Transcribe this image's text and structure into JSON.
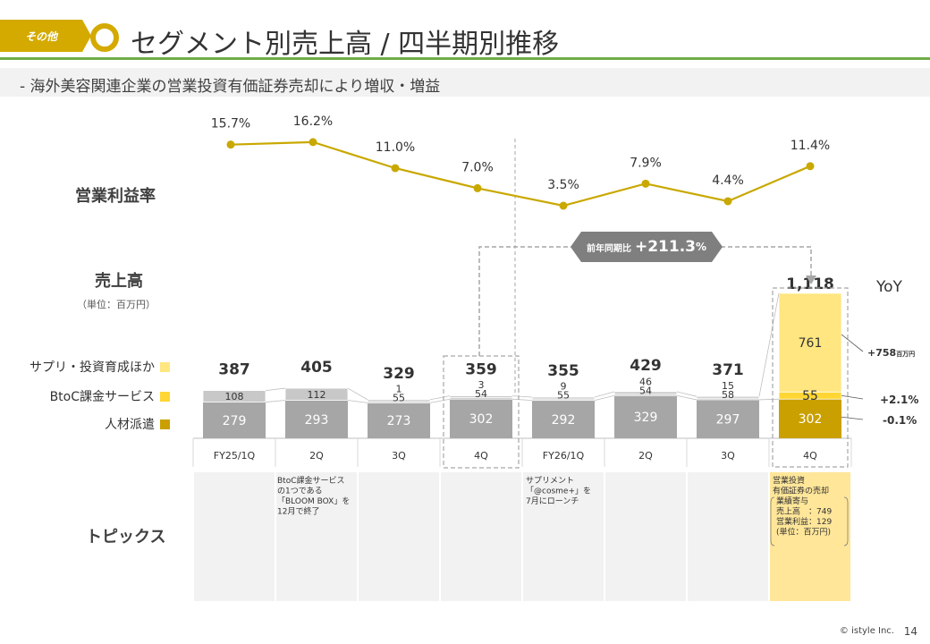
{
  "header": {
    "tag": "その他",
    "title": "セグメント別売上高 / 四半期別推移",
    "subtitle": "-  海外美容関連企業の営業投資有価証券売却により増収・増益"
  },
  "labels": {
    "margin_section": "営業利益率",
    "sales_section": "売上高",
    "sales_unit": "（単位：百万円）",
    "topics_section": "トピックス",
    "yoy": "YoY"
  },
  "legend": [
    {
      "name": "サプリ・投資育成ほか",
      "color": "#ffe680"
    },
    {
      "name": "BtoC課金サービス",
      "color": "#ffd633"
    },
    {
      "name": "人材派遣",
      "color": "#c9a000"
    }
  ],
  "callout": {
    "label": "前年同期比",
    "value": "+211.3",
    "unit": "%"
  },
  "yoy_values": [
    {
      "value": "+758",
      "unit": "百万円"
    },
    {
      "value": "+2.1%",
      "unit": ""
    },
    {
      "value": "-0.1%",
      "unit": ""
    }
  ],
  "chart_data": {
    "type": "bar",
    "categories": [
      "FY25/1Q",
      "2Q",
      "3Q",
      "4Q",
      "FY26/1Q",
      "2Q",
      "3Q",
      "4Q"
    ],
    "series": [
      {
        "name": "人材派遣",
        "values": [
          279,
          293,
          273,
          302,
          292,
          329,
          297,
          302
        ]
      },
      {
        "name": "BtoC課金サービス",
        "values": [
          null,
          null,
          55,
          54,
          55,
          54,
          58,
          55
        ]
      },
      {
        "name": "サプリ・投資育成ほか",
        "values": [
          108,
          112,
          1,
          3,
          9,
          46,
          15,
          761
        ]
      }
    ],
    "totals": [
      387,
      405,
      329,
      359,
      355,
      429,
      371,
      1118
    ],
    "total_labels": [
      "387",
      "405",
      "329",
      "359",
      "355",
      "429",
      "371",
      "1,118"
    ],
    "operating_margin": {
      "name": "営業利益率",
      "values": [
        15.7,
        16.2,
        11.0,
        7.0,
        3.5,
        7.9,
        4.4,
        11.4
      ],
      "labels": [
        "15.7%",
        "16.2%",
        "11.0%",
        "7.0%",
        "3.5%",
        "7.9%",
        "4.4%",
        "11.4%"
      ]
    },
    "colors": {
      "bar_gray_dark": "#a6a6a6",
      "bar_gray_light": "#c8c8c8",
      "highlight_dark": "#c9a000",
      "highlight_mid": "#ffd633",
      "highlight_light": "#ffe680",
      "line": "#c9a800",
      "callout": "#7f7f7f"
    }
  },
  "topics": [
    {
      "text": ""
    },
    {
      "text": "BtoC課金サービス\nの1つである\n「BLOOM BOX」を\n12月で終了"
    },
    {
      "text": ""
    },
    {
      "text": ""
    },
    {
      "text": "サプリメント\n「@cosme+」を\n7月にローンチ"
    },
    {
      "text": ""
    },
    {
      "text": ""
    },
    {
      "text": "営業投資\n有価証券の売却\n業績寄与\n売上高　：749\n営業利益：129\n(単位：百万円)"
    }
  ],
  "footer": {
    "copyright": "© istyle Inc.",
    "page": "14"
  }
}
